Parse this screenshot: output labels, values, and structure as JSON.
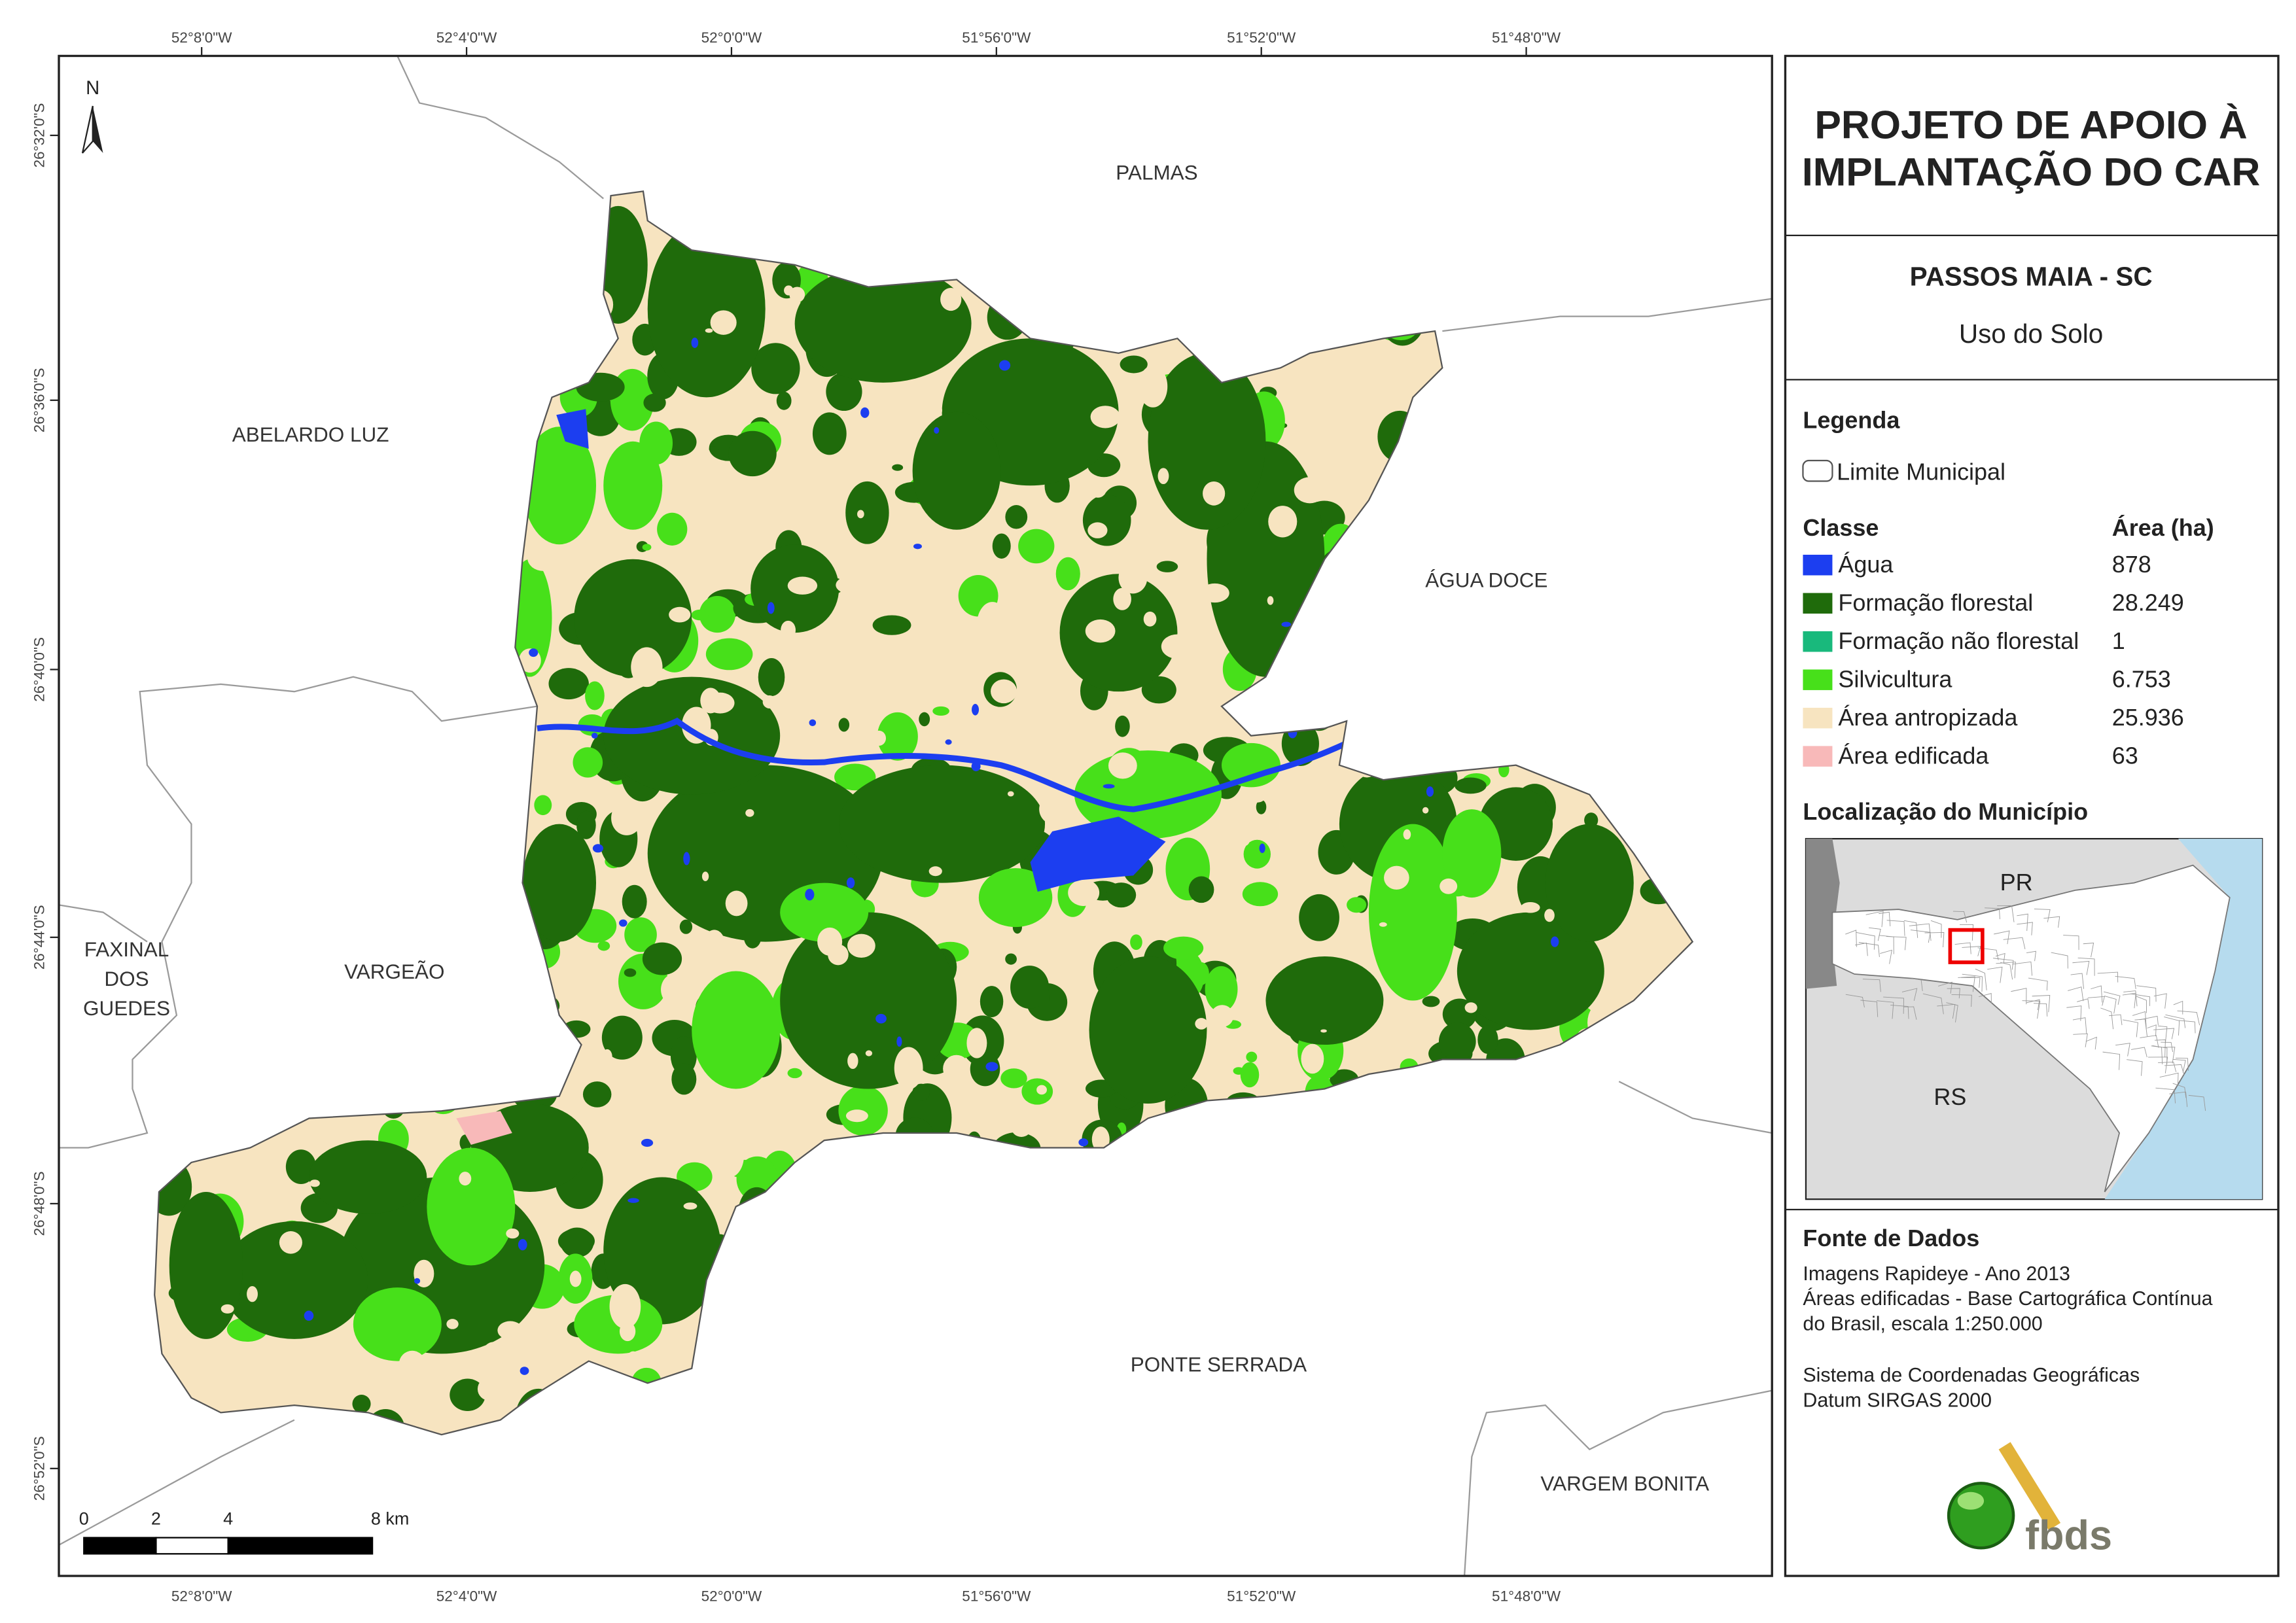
{
  "map": {
    "graticule": {
      "longitudes": [
        "52°8'0\"W",
        "52°4'0\"W",
        "52°0'0\"W",
        "51°56'0\"W",
        "51°52'0\"W",
        "51°48'0\"W"
      ],
      "latitudes": [
        "26°32'0\"S",
        "26°36'0\"S",
        "26°40'0\"S",
        "26°44'0\"S",
        "26°48'0\"S",
        "26°52'0\"S"
      ]
    },
    "neighbors": [
      [
        "PALMAS"
      ],
      [
        "ABELARDO LUZ"
      ],
      [
        "ÁGUA DOCE"
      ],
      [
        "FAXINAL",
        "DOS",
        "GUEDES"
      ],
      [
        "VARGEÃO"
      ],
      [
        "PONTE SERRADA"
      ],
      [
        "VARGEM BONITA"
      ]
    ],
    "north": "N",
    "scale_bar": [
      "0",
      "2",
      "4",
      "8 km"
    ]
  },
  "panel": {
    "title": [
      "PROJETO DE APOIO À",
      "IMPLANTAÇÃO DO CAR"
    ],
    "municipality": "PASSOS MAIA - SC",
    "subtitle": "Uso do Solo",
    "legend_title": "Legenda",
    "boundary_label": "Limite Municipal",
    "class_header": "Classe",
    "area_header": "Área (ha)",
    "classes": [
      {
        "name": "Água",
        "color": "#1c3ef0",
        "area": "878"
      },
      {
        "name": "Formação florestal",
        "color": "#1f6b0b",
        "area": "28.249"
      },
      {
        "name": "Formação não florestal",
        "color": "#19b97c",
        "area": "1"
      },
      {
        "name": "Silvicultura",
        "color": "#47e01a",
        "area": "6.753"
      },
      {
        "name": "Área antropizada",
        "color": "#f7e4c0",
        "area": "25.936"
      },
      {
        "name": "Área edificada",
        "color": "#f8b9b9",
        "area": "63"
      }
    ],
    "location_title": "Localização do Município",
    "inset_labels": [
      "PR",
      "RS"
    ],
    "source_title": "Fonte de Dados",
    "source_lines": [
      "Imagens Rapideye - Ano 2013",
      "Áreas edificadas - Base Cartográfica Contínua",
      "do Brasil, escala 1:250.000",
      "Sistema de Coordenadas Geográficas",
      "Datum SIRGAS 2000"
    ],
    "logo": "fbds"
  }
}
